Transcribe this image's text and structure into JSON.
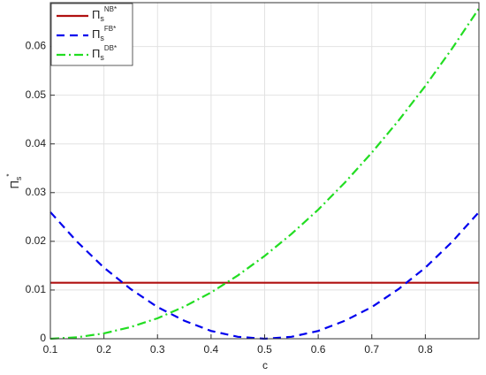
{
  "chart_data": {
    "type": "line",
    "xlabel": "c",
    "ylabel": {
      "base": "Π",
      "sub": "s",
      "sup": "*"
    },
    "x": [
      0.1,
      0.15,
      0.2,
      0.25,
      0.3,
      0.35,
      0.4,
      0.45,
      0.5,
      0.55,
      0.6,
      0.65,
      0.7,
      0.75,
      0.8,
      0.85,
      0.9
    ],
    "series": [
      {
        "name": {
          "base": "Π",
          "sub": "s",
          "sup": "NB*"
        },
        "color": "#b01010",
        "dash": "solid",
        "values": [
          0.0115,
          0.0115,
          0.0115,
          0.0115,
          0.0115,
          0.0115,
          0.0115,
          0.0115,
          0.0115,
          0.0115,
          0.0115,
          0.0115,
          0.0115,
          0.0115,
          0.0115,
          0.0115,
          0.0115
        ]
      },
      {
        "name": {
          "base": "Π",
          "sub": "s",
          "sup": "FB*"
        },
        "color": "#0000ee",
        "dash": "dashed",
        "values": [
          0.026,
          0.0199,
          0.0146,
          0.0102,
          0.0065,
          0.0037,
          0.0016,
          0.0004,
          0,
          0.0004,
          0.0016,
          0.0037,
          0.0065,
          0.0102,
          0.0146,
          0.0199,
          0.026
        ]
      },
      {
        "name": {
          "base": "Π",
          "sub": "s",
          "sup": "DB*"
        },
        "color": "#22dd22",
        "dash": "dashdot",
        "values": [
          0,
          0.0003,
          0.0011,
          0.0024,
          0.0042,
          0.0066,
          0.0095,
          0.013,
          0.017,
          0.0215,
          0.0265,
          0.0321,
          0.0382,
          0.0448,
          0.0519,
          0.0596,
          0.0678
        ]
      }
    ],
    "xlim": [
      0.1,
      0.9
    ],
    "xticks": [
      0.1,
      0.2,
      0.3,
      0.4,
      0.5,
      0.6,
      0.7,
      0.8
    ],
    "ylim": [
      0,
      0.069
    ],
    "yticks": [
      0,
      0.01,
      0.02,
      0.03,
      0.04,
      0.05,
      0.06
    ],
    "grid": true,
    "legend": "upper-left"
  }
}
